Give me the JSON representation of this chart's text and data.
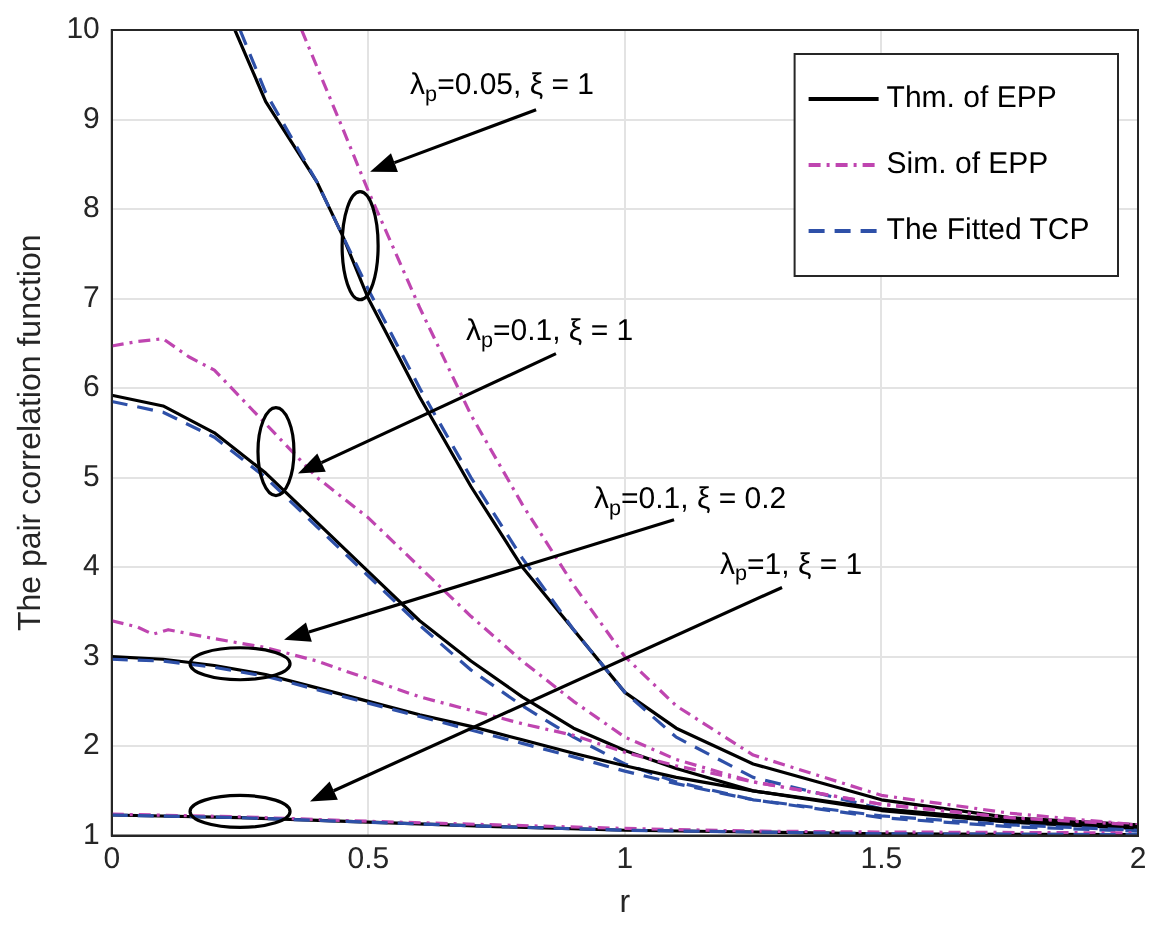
{
  "chart_data": {
    "type": "line",
    "xlabel": "r",
    "ylabel": "The pair correlation function",
    "xlim": [
      0,
      2
    ],
    "xticks": [
      0,
      0.5,
      1,
      1.5,
      2
    ],
    "ylim": [
      1,
      10
    ],
    "yticks": [
      1,
      2,
      3,
      4,
      5,
      6,
      7,
      8,
      9,
      10
    ],
    "grid": true,
    "legend": "top right",
    "series": [
      {
        "name": "Thm. of EPP",
        "color": "#000000",
        "line_style": "solid",
        "x": [
          0.24,
          0.3,
          0.4,
          0.45,
          0.5,
          0.6,
          0.7,
          0.8,
          0.9,
          1.0,
          1.1,
          1.25,
          1.5,
          1.75,
          2.0
        ],
        "values": [
          10,
          9.2,
          8.3,
          7.7,
          7.0,
          5.9,
          4.9,
          4.0,
          3.3,
          2.6,
          2.2,
          1.8,
          1.4,
          1.2,
          1.12
        ]
      },
      {
        "name": "Sim. of EPP",
        "color": "#bf45b0",
        "line_style": "dashdot",
        "x": [
          0.37,
          0.45,
          0.5,
          0.6,
          0.7,
          0.8,
          0.9,
          1.0,
          1.1,
          1.25,
          1.5,
          1.75,
          2.0
        ],
        "values": [
          10,
          8.9,
          8.2,
          6.9,
          5.7,
          4.7,
          3.8,
          3.0,
          2.45,
          1.9,
          1.45,
          1.25,
          1.12
        ]
      },
      {
        "name": "The Fitted TCP",
        "color": "#2e50a8",
        "line_style": "dashed",
        "x": [
          0.25,
          0.3,
          0.4,
          0.5,
          0.6,
          0.7,
          0.8,
          0.9,
          1.0,
          1.1,
          1.25,
          1.5,
          1.75,
          2.0
        ],
        "values": [
          10,
          9.3,
          8.3,
          7.1,
          6.0,
          5.0,
          4.1,
          3.3,
          2.6,
          2.1,
          1.65,
          1.3,
          1.15,
          1.08
        ]
      },
      {
        "color": "#000000",
        "line_style": "solid",
        "x": [
          0,
          0.1,
          0.2,
          0.3,
          0.4,
          0.5,
          0.6,
          0.7,
          0.8,
          0.9,
          1.0,
          1.1,
          1.25,
          1.5,
          1.75,
          2.0
        ],
        "values": [
          5.92,
          5.8,
          5.5,
          5.05,
          4.5,
          3.95,
          3.4,
          2.95,
          2.55,
          2.2,
          1.95,
          1.75,
          1.5,
          1.28,
          1.15,
          1.08
        ]
      },
      {
        "color": "#bf45b0",
        "line_style": "dashdot",
        "x": [
          0,
          0.05,
          0.1,
          0.15,
          0.2,
          0.3,
          0.4,
          0.5,
          0.6,
          0.7,
          0.8,
          0.9,
          1.0,
          1.1,
          1.25,
          1.5,
          1.75,
          2.0
        ],
        "values": [
          6.47,
          6.52,
          6.55,
          6.35,
          6.2,
          5.6,
          5.0,
          4.55,
          4.0,
          3.45,
          2.95,
          2.5,
          2.1,
          1.85,
          1.6,
          1.35,
          1.2,
          1.1
        ]
      },
      {
        "color": "#2e50a8",
        "line_style": "dashed",
        "x": [
          0,
          0.1,
          0.2,
          0.3,
          0.4,
          0.5,
          0.6,
          0.7,
          0.8,
          0.9,
          1.0,
          1.1,
          1.25,
          1.5,
          1.75,
          2.0
        ],
        "values": [
          5.85,
          5.73,
          5.45,
          5.0,
          4.45,
          3.9,
          3.35,
          2.85,
          2.45,
          2.1,
          1.8,
          1.6,
          1.4,
          1.2,
          1.1,
          1.05
        ]
      },
      {
        "color": "#000000",
        "line_style": "solid",
        "x": [
          0,
          0.1,
          0.2,
          0.3,
          0.4,
          0.5,
          0.6,
          0.7,
          0.8,
          0.9,
          1.0,
          1.1,
          1.25,
          1.5,
          1.75,
          2.0
        ],
        "values": [
          3.0,
          2.97,
          2.9,
          2.8,
          2.65,
          2.5,
          2.35,
          2.22,
          2.07,
          1.92,
          1.78,
          1.65,
          1.5,
          1.3,
          1.17,
          1.1
        ]
      },
      {
        "color": "#bf45b0",
        "line_style": "dashdot",
        "x": [
          0,
          0.05,
          0.08,
          0.11,
          0.2,
          0.3,
          0.4,
          0.5,
          0.6,
          0.7,
          0.8,
          0.9,
          1.0,
          1.1,
          1.25,
          1.5,
          1.75,
          2.0
        ],
        "values": [
          3.4,
          3.33,
          3.25,
          3.3,
          3.2,
          3.1,
          2.95,
          2.75,
          2.55,
          2.4,
          2.25,
          2.12,
          1.93,
          1.78,
          1.6,
          1.35,
          1.2,
          1.12
        ]
      },
      {
        "color": "#2e50a8",
        "line_style": "dashed",
        "x": [
          0,
          0.1,
          0.2,
          0.3,
          0.4,
          0.5,
          0.6,
          0.7,
          0.8,
          0.9,
          1.0,
          1.1,
          1.25,
          1.5,
          1.75,
          2.0
        ],
        "values": [
          2.97,
          2.95,
          2.88,
          2.78,
          2.63,
          2.48,
          2.33,
          2.18,
          2.03,
          1.88,
          1.72,
          1.58,
          1.4,
          1.22,
          1.12,
          1.06
        ]
      },
      {
        "color": "#000000",
        "line_style": "solid",
        "x": [
          0,
          0.25,
          0.5,
          0.75,
          1.0,
          1.25,
          1.5,
          2.0
        ],
        "values": [
          1.23,
          1.2,
          1.15,
          1.1,
          1.06,
          1.04,
          1.02,
          1.01
        ]
      },
      {
        "color": "#bf45b0",
        "line_style": "dashdot",
        "x": [
          0,
          0.25,
          0.5,
          0.75,
          1.0,
          1.25,
          1.5,
          2.0
        ],
        "values": [
          1.24,
          1.21,
          1.16,
          1.12,
          1.08,
          1.05,
          1.04,
          1.03
        ]
      },
      {
        "color": "#2e50a8",
        "line_style": "dashed",
        "x": [
          0,
          0.25,
          0.5,
          0.75,
          1.0,
          1.25,
          1.5,
          2.0
        ],
        "values": [
          1.23,
          1.2,
          1.15,
          1.1,
          1.06,
          1.04,
          1.02,
          1.01
        ]
      }
    ],
    "annotations": [
      "λ$_{p}$=0.05, ξ = 1",
      "λ$_{p}$=0.1, ξ = 1",
      "λ$_{p}$=0.1, ξ = 0.2",
      "λ$_{p}$=1, ξ = 1"
    ]
  }
}
